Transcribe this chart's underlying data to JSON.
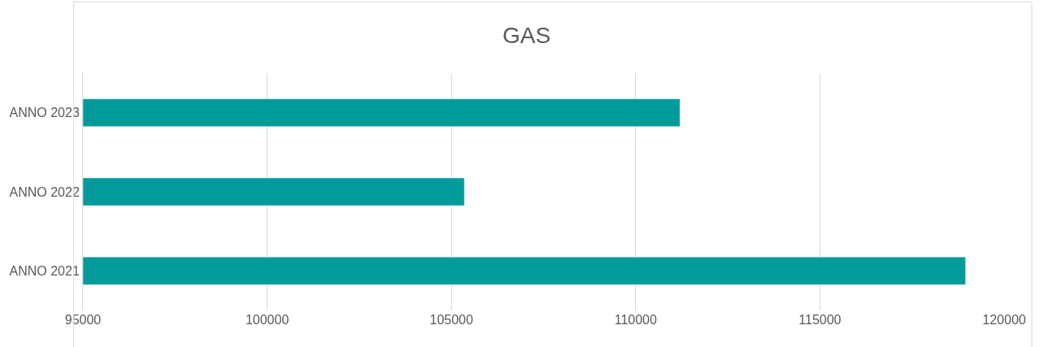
{
  "chart_data": {
    "type": "bar",
    "orientation": "horizontal",
    "title": "GAS",
    "categories": [
      "ANNO 2023",
      "ANNO 2022",
      "ANNO 2021"
    ],
    "values": [
      111200,
      105350,
      118950
    ],
    "color": "#009b9a",
    "xlim": [
      95000,
      120000
    ],
    "xticks": [
      95000,
      100000,
      105000,
      110000,
      115000,
      120000
    ],
    "grid": "x"
  }
}
